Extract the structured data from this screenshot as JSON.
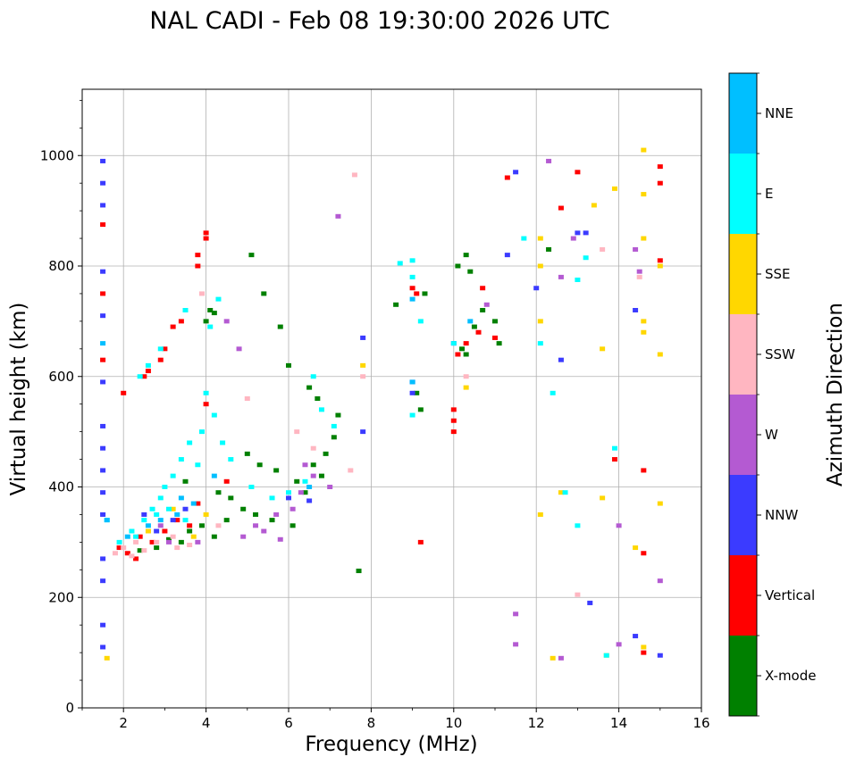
{
  "chart_data": {
    "type": "scatter",
    "title": "NAL CADI - Feb 08 19:30:00 2026 UTC",
    "xlabel": "Frequency (MHz)",
    "ylabel": "Virtual height (km)",
    "xlim": [
      1,
      16
    ],
    "ylim": [
      0,
      1120
    ],
    "xticks": [
      2,
      4,
      6,
      8,
      10,
      12,
      14,
      16
    ],
    "xtick_labels": [
      "2",
      "4",
      "6",
      "8",
      "10",
      "12",
      "14",
      "16"
    ],
    "yticks": [
      0,
      200,
      400,
      600,
      800,
      1000
    ],
    "ytick_labels": [
      "0",
      "200",
      "400",
      "600",
      "800",
      "1000"
    ],
    "grid": true,
    "colorbar": {
      "label": "Azimuth Direction",
      "categories": [
        "X-mode",
        "Vertical",
        "NNW",
        "W",
        "SSW",
        "SSE",
        "E",
        "NNE"
      ],
      "colors": [
        "#008000",
        "#ff0000",
        "#3b3bff",
        "#b45ad2",
        "#ffb6c1",
        "#ffd700",
        "#00ffff",
        "#00bfff"
      ]
    },
    "series": [
      {
        "name": "X-mode",
        "points": [
          [
            4.0,
            700
          ],
          [
            4.1,
            720
          ],
          [
            4.2,
            715
          ],
          [
            5.1,
            820
          ],
          [
            5.4,
            750
          ],
          [
            5.8,
            690
          ],
          [
            6.0,
            620
          ],
          [
            6.5,
            580
          ],
          [
            6.7,
            560
          ],
          [
            7.2,
            530
          ],
          [
            5.0,
            460
          ],
          [
            5.3,
            440
          ],
          [
            5.7,
            430
          ],
          [
            6.2,
            410
          ],
          [
            6.6,
            440
          ],
          [
            6.9,
            460
          ],
          [
            7.1,
            490
          ],
          [
            4.6,
            380
          ],
          [
            4.9,
            360
          ],
          [
            5.2,
            350
          ],
          [
            5.6,
            340
          ],
          [
            6.1,
            330
          ],
          [
            6.4,
            390
          ],
          [
            6.8,
            420
          ],
          [
            3.6,
            320
          ],
          [
            3.9,
            330
          ],
          [
            4.2,
            310
          ],
          [
            4.5,
            340
          ],
          [
            3.4,
            300
          ],
          [
            3.1,
            305
          ],
          [
            2.8,
            290
          ],
          [
            2.4,
            285
          ],
          [
            9.2,
            540
          ],
          [
            9.1,
            570
          ],
          [
            8.6,
            730
          ],
          [
            9.3,
            750
          ],
          [
            10.1,
            800
          ],
          [
            10.3,
            820
          ],
          [
            10.4,
            790
          ],
          [
            10.2,
            650
          ],
          [
            10.3,
            640
          ],
          [
            10.5,
            690
          ],
          [
            10.7,
            720
          ],
          [
            11.0,
            700
          ],
          [
            11.1,
            660
          ],
          [
            12.3,
            830
          ],
          [
            7.7,
            248
          ],
          [
            3.5,
            410
          ],
          [
            4.3,
            390
          ]
        ]
      },
      {
        "name": "Vertical",
        "points": [
          [
            4.0,
            860
          ],
          [
            4.0,
            850
          ],
          [
            3.8,
            820
          ],
          [
            3.8,
            800
          ],
          [
            3.4,
            700
          ],
          [
            3.2,
            690
          ],
          [
            3.0,
            650
          ],
          [
            2.9,
            630
          ],
          [
            2.6,
            610
          ],
          [
            2.5,
            600
          ],
          [
            2.0,
            570
          ],
          [
            4.0,
            550
          ],
          [
            9.0,
            760
          ],
          [
            9.1,
            750
          ],
          [
            10.0,
            540
          ],
          [
            10.0,
            520
          ],
          [
            10.0,
            500
          ],
          [
            10.1,
            640
          ],
          [
            10.3,
            660
          ],
          [
            10.6,
            680
          ],
          [
            10.7,
            760
          ],
          [
            11.0,
            670
          ],
          [
            11.3,
            960
          ],
          [
            13.0,
            970
          ],
          [
            15.0,
            980
          ],
          [
            15.0,
            950
          ],
          [
            15.0,
            810
          ],
          [
            13.9,
            450
          ],
          [
            14.6,
            430
          ],
          [
            14.6,
            280
          ],
          [
            14.6,
            100
          ],
          [
            12.6,
            905
          ],
          [
            1.5,
            875
          ],
          [
            1.5,
            750
          ],
          [
            1.5,
            630
          ],
          [
            9.2,
            300
          ],
          [
            3.0,
            320
          ],
          [
            3.3,
            340
          ],
          [
            3.6,
            330
          ],
          [
            2.7,
            300
          ],
          [
            2.3,
            270
          ],
          [
            2.1,
            280
          ],
          [
            1.9,
            290
          ],
          [
            2.4,
            310
          ],
          [
            4.5,
            410
          ],
          [
            3.8,
            370
          ]
        ]
      },
      {
        "name": "NNW",
        "points": [
          [
            1.5,
            990
          ],
          [
            1.5,
            950
          ],
          [
            1.5,
            910
          ],
          [
            1.5,
            790
          ],
          [
            1.5,
            710
          ],
          [
            1.5,
            590
          ],
          [
            1.5,
            510
          ],
          [
            1.5,
            470
          ],
          [
            1.5,
            430
          ],
          [
            1.5,
            390
          ],
          [
            1.5,
            350
          ],
          [
            1.5,
            270
          ],
          [
            1.5,
            230
          ],
          [
            1.5,
            150
          ],
          [
            1.5,
            110
          ],
          [
            7.8,
            670
          ],
          [
            7.8,
            500
          ],
          [
            9.0,
            590
          ],
          [
            9.0,
            570
          ],
          [
            10.0,
            660
          ],
          [
            11.3,
            820
          ],
          [
            11.5,
            970
          ],
          [
            12.0,
            760
          ],
          [
            12.6,
            630
          ],
          [
            13.0,
            860
          ],
          [
            13.2,
            860
          ],
          [
            13.3,
            190
          ],
          [
            14.4,
            130
          ],
          [
            14.4,
            720
          ],
          [
            15.0,
            95
          ],
          [
            3.2,
            340
          ],
          [
            3.5,
            360
          ],
          [
            2.8,
            320
          ],
          [
            2.5,
            350
          ],
          [
            6.0,
            380
          ],
          [
            6.5,
            375
          ]
        ]
      },
      {
        "name": "W",
        "points": [
          [
            7.2,
            890
          ],
          [
            4.5,
            700
          ],
          [
            4.8,
            650
          ],
          [
            6.4,
            440
          ],
          [
            6.6,
            420
          ],
          [
            6.3,
            390
          ],
          [
            6.1,
            360
          ],
          [
            5.7,
            350
          ],
          [
            5.2,
            330
          ],
          [
            4.9,
            310
          ],
          [
            5.4,
            320
          ],
          [
            10.8,
            730
          ],
          [
            12.3,
            990
          ],
          [
            12.6,
            780
          ],
          [
            12.9,
            850
          ],
          [
            14.4,
            830
          ],
          [
            14.5,
            790
          ],
          [
            15.0,
            230
          ],
          [
            14.0,
            330
          ],
          [
            14.0,
            115
          ],
          [
            11.5,
            170
          ],
          [
            11.5,
            115
          ],
          [
            12.6,
            90
          ],
          [
            3.1,
            300
          ],
          [
            3.8,
            300
          ],
          [
            5.8,
            305
          ],
          [
            7.0,
            400
          ],
          [
            2.9,
            330
          ]
        ]
      },
      {
        "name": "SSW",
        "points": [
          [
            7.6,
            965
          ],
          [
            3.9,
            750
          ],
          [
            5.0,
            560
          ],
          [
            6.2,
            500
          ],
          [
            6.6,
            470
          ],
          [
            7.5,
            430
          ],
          [
            7.8,
            600
          ],
          [
            13.0,
            205
          ],
          [
            13.6,
            830
          ],
          [
            14.5,
            780
          ],
          [
            2.0,
            290
          ],
          [
            2.2,
            275
          ],
          [
            2.5,
            285
          ],
          [
            2.8,
            300
          ],
          [
            3.2,
            310
          ],
          [
            3.6,
            295
          ],
          [
            1.8,
            280
          ],
          [
            4.3,
            330
          ],
          [
            2.3,
            300
          ],
          [
            3.3,
            290
          ],
          [
            10.3,
            600
          ]
        ]
      },
      {
        "name": "SSE",
        "points": [
          [
            1.6,
            90
          ],
          [
            7.8,
            620
          ],
          [
            10.3,
            580
          ],
          [
            12.1,
            850
          ],
          [
            12.1,
            800
          ],
          [
            12.1,
            700
          ],
          [
            12.1,
            350
          ],
          [
            12.4,
            90
          ],
          [
            12.6,
            390
          ],
          [
            13.4,
            910
          ],
          [
            13.6,
            650
          ],
          [
            13.6,
            380
          ],
          [
            13.7,
            95
          ],
          [
            13.9,
            940
          ],
          [
            14.6,
            1010
          ],
          [
            14.6,
            930
          ],
          [
            14.6,
            850
          ],
          [
            14.6,
            700
          ],
          [
            14.6,
            680
          ],
          [
            14.6,
            110
          ],
          [
            15.0,
            800
          ],
          [
            15.0,
            640
          ],
          [
            15.0,
            370
          ],
          [
            14.4,
            290
          ],
          [
            3.2,
            360
          ],
          [
            2.6,
            320
          ],
          [
            4.0,
            350
          ],
          [
            3.7,
            310
          ]
        ]
      },
      {
        "name": "E",
        "points": [
          [
            4.3,
            740
          ],
          [
            4.1,
            690
          ],
          [
            3.5,
            720
          ],
          [
            2.9,
            650
          ],
          [
            2.6,
            620
          ],
          [
            2.4,
            600
          ],
          [
            4.0,
            570
          ],
          [
            4.2,
            530
          ],
          [
            3.9,
            500
          ],
          [
            3.6,
            480
          ],
          [
            3.4,
            450
          ],
          [
            3.2,
            420
          ],
          [
            3.0,
            400
          ],
          [
            2.9,
            380
          ],
          [
            2.7,
            360
          ],
          [
            2.5,
            340
          ],
          [
            2.2,
            320
          ],
          [
            1.9,
            300
          ],
          [
            1.6,
            340
          ],
          [
            5.1,
            400
          ],
          [
            5.6,
            380
          ],
          [
            6.0,
            390
          ],
          [
            6.4,
            410
          ],
          [
            6.6,
            600
          ],
          [
            6.8,
            540
          ],
          [
            7.1,
            510
          ],
          [
            8.7,
            805
          ],
          [
            9.0,
            810
          ],
          [
            9.0,
            780
          ],
          [
            9.2,
            700
          ],
          [
            9.0,
            530
          ],
          [
            10.0,
            660
          ],
          [
            11.7,
            850
          ],
          [
            12.1,
            660
          ],
          [
            12.4,
            570
          ],
          [
            12.7,
            390
          ],
          [
            13.0,
            330
          ],
          [
            13.2,
            815
          ],
          [
            13.0,
            775
          ],
          [
            13.9,
            470
          ],
          [
            13.7,
            95
          ],
          [
            3.5,
            340
          ],
          [
            3.1,
            360
          ],
          [
            2.8,
            350
          ],
          [
            2.3,
            310
          ],
          [
            4.6,
            450
          ],
          [
            4.4,
            480
          ],
          [
            3.8,
            440
          ]
        ]
      },
      {
        "name": "NNE",
        "points": [
          [
            1.5,
            660
          ],
          [
            1.6,
            340
          ],
          [
            3.7,
            370
          ],
          [
            3.3,
            350
          ],
          [
            2.9,
            340
          ],
          [
            2.6,
            330
          ],
          [
            6.5,
            400
          ],
          [
            9.0,
            740
          ],
          [
            9.0,
            590
          ],
          [
            10.4,
            700
          ],
          [
            2.1,
            310
          ],
          [
            4.2,
            420
          ],
          [
            3.4,
            380
          ]
        ]
      }
    ]
  }
}
